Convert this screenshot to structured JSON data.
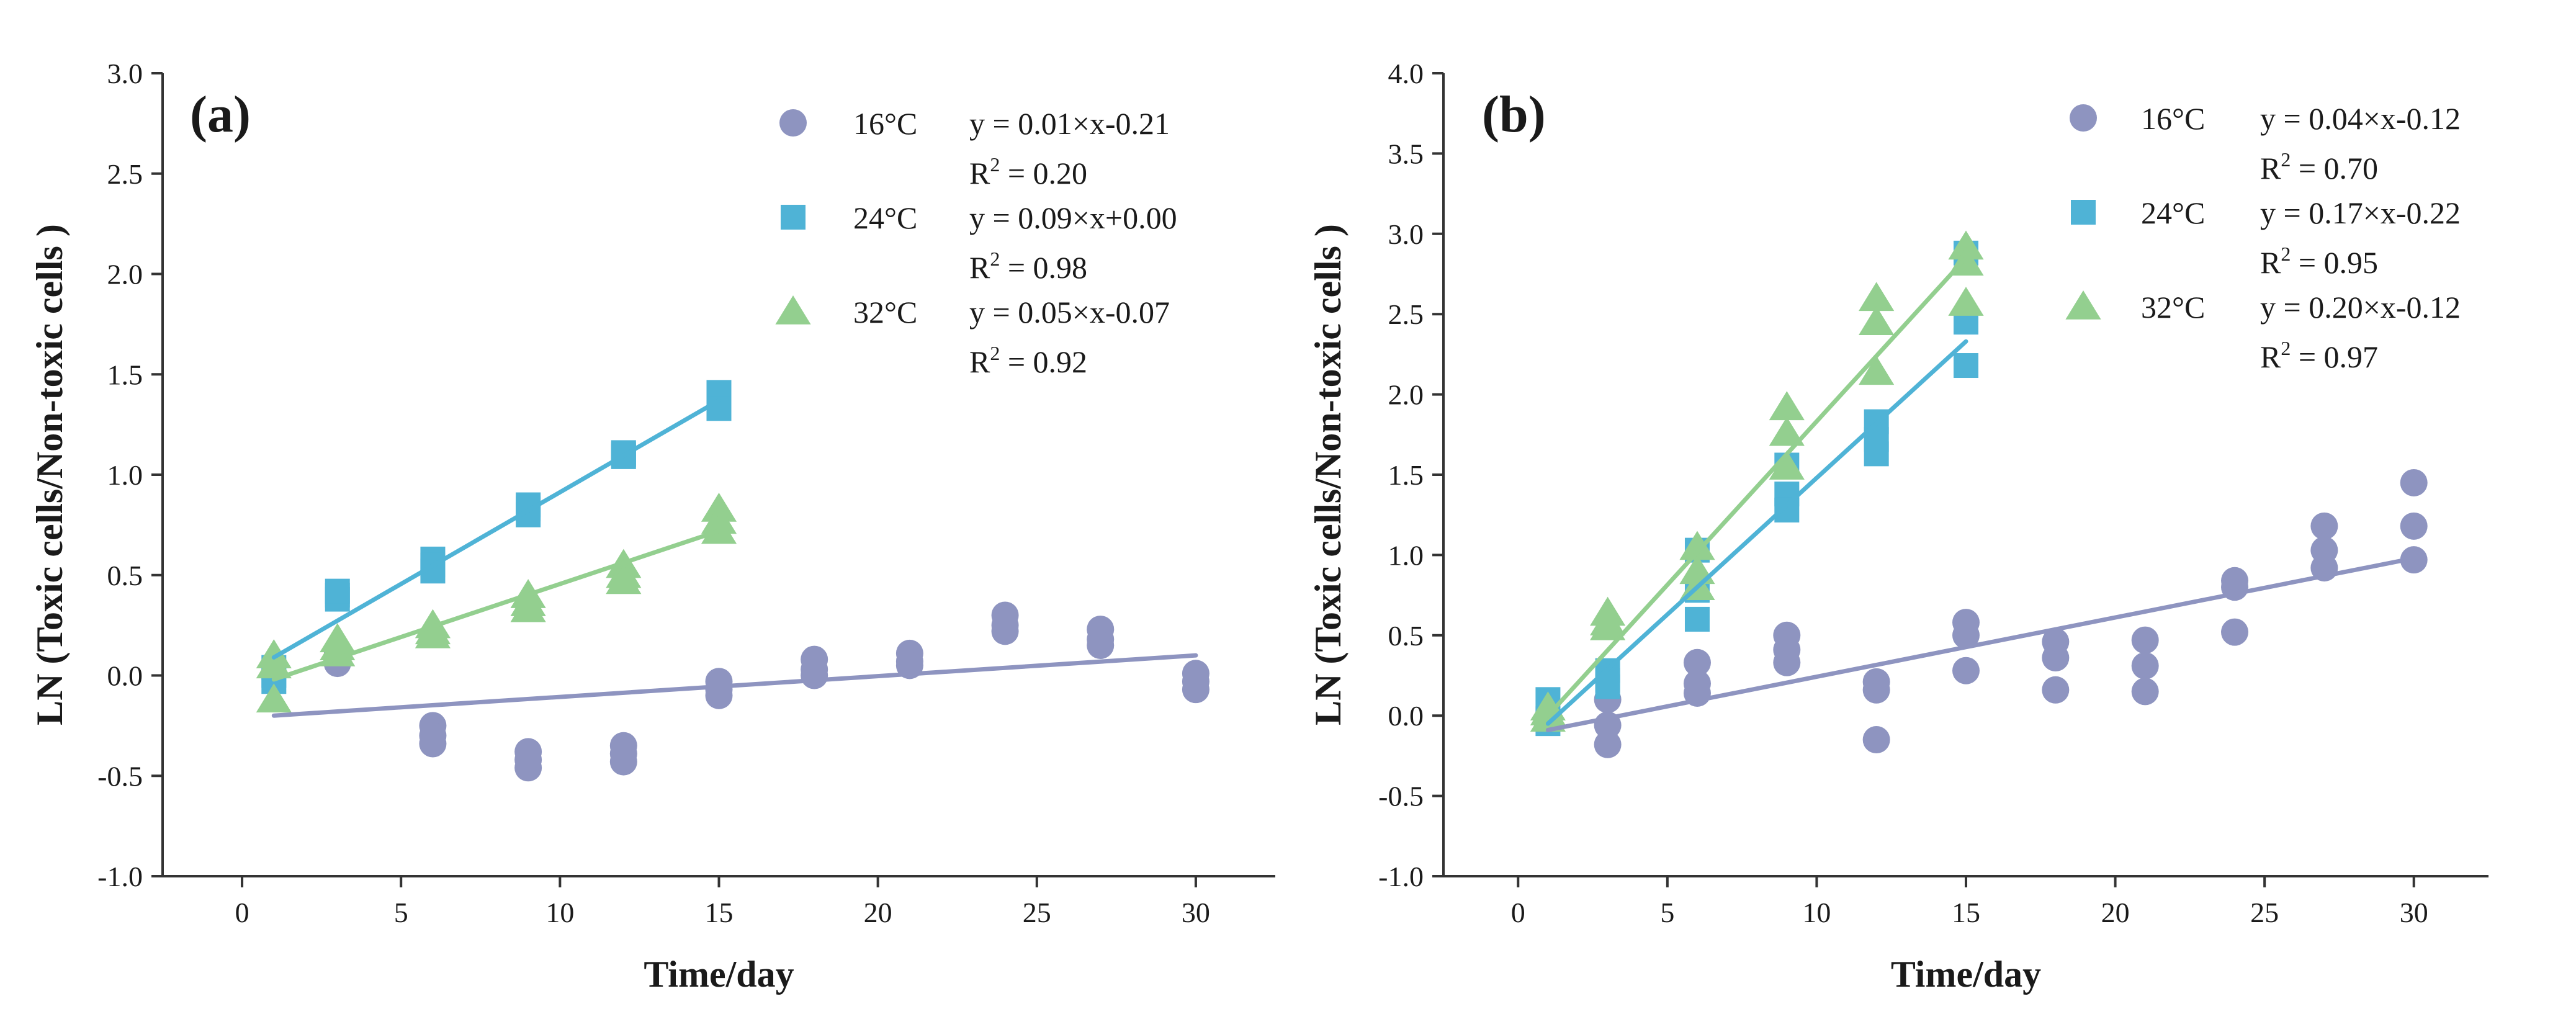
{
  "chart_data": [
    {
      "type": "scatter",
      "panel_label": "(a)",
      "xlabel": "Time/day",
      "ylabel": "LN (Toxic cells/Non-toxic cells )",
      "xlim": [
        -2.5,
        32.5
      ],
      "ylim": [
        -1.0,
        3.0
      ],
      "xticks": [
        "0",
        "5",
        "10",
        "15",
        "20",
        "25",
        "30"
      ],
      "xtick_values": [
        0,
        5,
        10,
        15,
        20,
        25,
        30
      ],
      "yticks": [
        "-1.0",
        "-0.5",
        "0.0",
        "0.5",
        "1.0",
        "1.5",
        "2.0",
        "2.5",
        "3.0"
      ],
      "ytick_values": [
        -1.0,
        -0.5,
        0.0,
        0.5,
        1.0,
        1.5,
        2.0,
        2.5,
        3.0
      ],
      "legend_position": "top-right",
      "series": [
        {
          "name": "16°C",
          "marker": "circle",
          "color": "#8e94c0",
          "equation": "y = 0.01×x-0.21",
          "r2_prefix": "R",
          "r2_exp": "2",
          "r2_value": " = 0.20",
          "fit": {
            "x": [
              1,
              30
            ],
            "y": [
              -0.2,
              0.1
            ]
          },
          "points": [
            [
              3,
              0.06
            ],
            [
              3,
              0.12
            ],
            [
              3,
              0.09
            ],
            [
              6,
              -0.25
            ],
            [
              6,
              -0.3
            ],
            [
              6,
              -0.34
            ],
            [
              9,
              -0.38
            ],
            [
              9,
              -0.42
            ],
            [
              9,
              -0.46
            ],
            [
              12,
              -0.35
            ],
            [
              12,
              -0.39
            ],
            [
              12,
              -0.43
            ],
            [
              15,
              -0.03
            ],
            [
              15,
              -0.07
            ],
            [
              15,
              -0.1
            ],
            [
              18,
              0.08
            ],
            [
              18,
              0.03
            ],
            [
              18,
              0.0
            ],
            [
              21,
              0.11
            ],
            [
              21,
              0.07
            ],
            [
              21,
              0.05
            ],
            [
              24,
              0.3
            ],
            [
              24,
              0.25
            ],
            [
              24,
              0.22
            ],
            [
              27,
              0.23
            ],
            [
              27,
              0.18
            ],
            [
              27,
              0.15
            ],
            [
              30,
              0.01
            ],
            [
              30,
              -0.03
            ],
            [
              30,
              -0.07
            ]
          ]
        },
        {
          "name": "24°C",
          "marker": "square",
          "color": "#4fb3d6",
          "equation": "y = 0.09×x+0.00",
          "r2_prefix": "R",
          "r2_exp": "2",
          "r2_value": " = 0.98",
          "fit": {
            "x": [
              1,
              15
            ],
            "y": [
              0.09,
              1.37
            ]
          },
          "points": [
            [
              1,
              0.0
            ],
            [
              1,
              -0.03
            ],
            [
              1,
              0.04
            ],
            [
              3,
              0.4
            ],
            [
              3,
              0.38
            ],
            [
              3,
              0.42
            ],
            [
              6,
              0.58
            ],
            [
              6,
              0.52
            ],
            [
              6,
              0.55
            ],
            [
              9,
              0.85
            ],
            [
              9,
              0.8
            ],
            [
              9,
              0.83
            ],
            [
              12,
              1.1
            ],
            [
              12,
              1.09
            ],
            [
              12,
              1.11
            ],
            [
              15,
              1.41
            ],
            [
              15,
              1.36
            ],
            [
              15,
              1.33
            ]
          ]
        },
        {
          "name": "32°C",
          "marker": "triangle",
          "color": "#93cf8f",
          "equation": "y = 0.05×x-0.07",
          "r2_prefix": "R",
          "r2_exp": "2",
          "r2_value": " = 0.92",
          "fit": {
            "x": [
              1,
              15
            ],
            "y": [
              -0.02,
              0.72
            ]
          },
          "points": [
            [
              1,
              0.1
            ],
            [
              1,
              0.05
            ],
            [
              1,
              -0.12
            ],
            [
              3,
              0.18
            ],
            [
              3,
              0.14
            ],
            [
              3,
              0.11
            ],
            [
              6,
              0.25
            ],
            [
              6,
              0.22
            ],
            [
              6,
              0.2
            ],
            [
              9,
              0.4
            ],
            [
              9,
              0.36
            ],
            [
              9,
              0.33
            ],
            [
              12,
              0.55
            ],
            [
              12,
              0.5
            ],
            [
              12,
              0.47
            ],
            [
              15,
              0.83
            ],
            [
              15,
              0.77
            ],
            [
              15,
              0.72
            ]
          ]
        }
      ]
    },
    {
      "type": "scatter",
      "panel_label": "(b)",
      "xlabel": "Time/day",
      "ylabel": "LN (Toxic cells/Non-toxic cells )",
      "xlim": [
        -2.5,
        32.5
      ],
      "ylim": [
        -1.0,
        4.0
      ],
      "xticks": [
        "0",
        "5",
        "10",
        "15",
        "20",
        "25",
        "30"
      ],
      "xtick_values": [
        0,
        5,
        10,
        15,
        20,
        25,
        30
      ],
      "yticks": [
        "-1.0",
        "-0.5",
        "0.0",
        "0.5",
        "1.0",
        "1.5",
        "2.0",
        "2.5",
        "3.0",
        "3.5",
        "4.0"
      ],
      "ytick_values": [
        -1.0,
        -0.5,
        0.0,
        0.5,
        1.0,
        1.5,
        2.0,
        2.5,
        3.0,
        3.5,
        4.0
      ],
      "legend_position": "top-right",
      "series": [
        {
          "name": "16°C",
          "marker": "circle",
          "color": "#8e94c0",
          "equation": "y = 0.04×x-0.12",
          "r2_prefix": "R",
          "r2_exp": "2",
          "r2_value": " = 0.70",
          "fit": {
            "x": [
              1,
              30
            ],
            "y": [
              -0.09,
              0.98
            ]
          },
          "points": [
            [
              3,
              0.1
            ],
            [
              3,
              -0.06
            ],
            [
              3,
              -0.18
            ],
            [
              6,
              0.33
            ],
            [
              6,
              0.2
            ],
            [
              6,
              0.14
            ],
            [
              9,
              0.5
            ],
            [
              9,
              0.41
            ],
            [
              9,
              0.33
            ],
            [
              12,
              0.21
            ],
            [
              12,
              0.16
            ],
            [
              12,
              -0.15
            ],
            [
              15,
              0.58
            ],
            [
              15,
              0.5
            ],
            [
              15,
              0.28
            ],
            [
              18,
              0.46
            ],
            [
              18,
              0.36
            ],
            [
              18,
              0.16
            ],
            [
              21,
              0.47
            ],
            [
              21,
              0.31
            ],
            [
              21,
              0.15
            ],
            [
              24,
              0.84
            ],
            [
              24,
              0.8
            ],
            [
              24,
              0.52
            ],
            [
              27,
              1.18
            ],
            [
              27,
              1.03
            ],
            [
              27,
              0.92
            ],
            [
              30,
              1.45
            ],
            [
              30,
              1.18
            ],
            [
              30,
              0.97
            ]
          ]
        },
        {
          "name": "24°C",
          "marker": "square",
          "color": "#4fb3d6",
          "equation": "y = 0.17×x-0.22",
          "r2_prefix": "R",
          "r2_exp": "2",
          "r2_value": " = 0.95",
          "fit": {
            "x": [
              1,
              15
            ],
            "y": [
              -0.05,
              2.33
            ]
          },
          "points": [
            [
              1,
              0.1
            ],
            [
              1,
              -0.02
            ],
            [
              1,
              -0.05
            ],
            [
              3,
              0.28
            ],
            [
              3,
              0.22
            ],
            [
              3,
              0.18
            ],
            [
              6,
              1.03
            ],
            [
              6,
              0.78
            ],
            [
              6,
              0.6
            ],
            [
              9,
              1.56
            ],
            [
              9,
              1.38
            ],
            [
              9,
              1.28
            ],
            [
              12,
              1.83
            ],
            [
              12,
              1.72
            ],
            [
              12,
              1.63
            ],
            [
              15,
              2.88
            ],
            [
              15,
              2.45
            ],
            [
              15,
              2.18
            ]
          ]
        },
        {
          "name": "32°C",
          "marker": "triangle",
          "color": "#93cf8f",
          "equation": "y = 0.20×x-0.12",
          "r2_prefix": "R",
          "r2_exp": "2",
          "r2_value": " = 0.97",
          "fit": {
            "x": [
              1,
              15
            ],
            "y": [
              0.0,
              2.85
            ]
          },
          "points": [
            [
              1,
              0.05
            ],
            [
              1,
              0.02
            ],
            [
              1,
              -0.02
            ],
            [
              3,
              0.64
            ],
            [
              3,
              0.58
            ],
            [
              3,
              0.55
            ],
            [
              6,
              1.05
            ],
            [
              6,
              0.9
            ],
            [
              6,
              0.8
            ],
            [
              9,
              1.92
            ],
            [
              9,
              1.76
            ],
            [
              9,
              1.55
            ],
            [
              12,
              2.6
            ],
            [
              12,
              2.45
            ],
            [
              12,
              2.14
            ],
            [
              15,
              2.92
            ],
            [
              15,
              2.82
            ],
            [
              15,
              2.57
            ]
          ]
        }
      ]
    }
  ]
}
